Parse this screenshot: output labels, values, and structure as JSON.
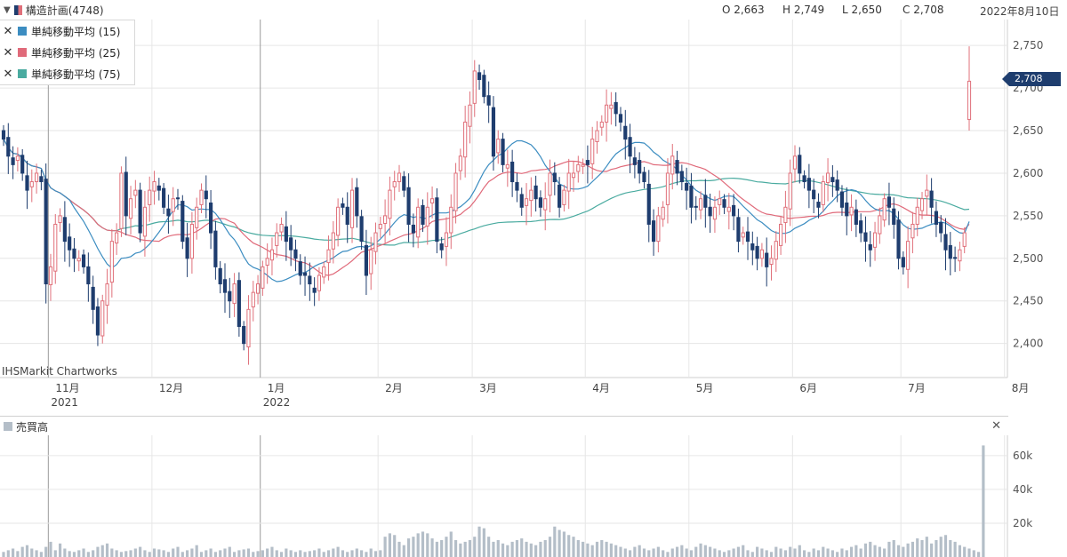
{
  "header": {
    "symbol": "構造計画(4748)",
    "open": "O 2,663",
    "high": "H 2,749",
    "low": "L 2,650",
    "close": "C 2,708",
    "date": "2022年8月10日"
  },
  "legend": [
    {
      "label": "単純移動平均 (15)",
      "color": "#3c8dc1"
    },
    {
      "label": "単純移動平均 (25)",
      "color": "#e06a7a"
    },
    {
      "label": "単純移動平均 (75)",
      "color": "#4aaba0"
    }
  ],
  "watermark": "IHSMarkit Chartworks",
  "last_price": "2,708",
  "volume_panel": {
    "title": "売買高",
    "close_icon": "close-icon"
  },
  "colors": {
    "up": "#e0707a",
    "down": "#1e3d6e",
    "ma15": "#3c8dc1",
    "ma25": "#e06a7a",
    "ma75": "#4aaba0",
    "volume": "#b4bec8",
    "grid": "#e6e6e6"
  },
  "chart_data": [
    {
      "type": "candlestick",
      "title": "構造計画(4748)",
      "y_ticks": [
        "2,400",
        "2,450",
        "2,500",
        "2,550",
        "2,600",
        "2,650",
        "2,700",
        "2,750"
      ],
      "x_labels": [
        "11月",
        "12月",
        "1月",
        "2月",
        "3月",
        "4月",
        "5月",
        "6月",
        "7月",
        "8月"
      ],
      "year_labels": [
        {
          "month": "11月",
          "year": "2021"
        },
        {
          "month": "1月",
          "year": "2022"
        }
      ],
      "ylim": [
        2360,
        2770
      ],
      "month_starts": [
        10,
        32,
        55,
        80,
        100,
        124,
        146,
        168,
        191,
        213
      ],
      "close": [
        2640,
        2620,
        2610,
        2620,
        2600,
        2580,
        2590,
        2600,
        2590,
        2470,
        2490,
        2540,
        2550,
        2520,
        2510,
        2500,
        2500,
        2490,
        2470,
        2440,
        2410,
        2450,
        2470,
        2520,
        2530,
        2600,
        2550,
        2570,
        2580,
        2530,
        2560,
        2580,
        2590,
        2580,
        2560,
        2550,
        2570,
        2570,
        2520,
        2500,
        2540,
        2560,
        2580,
        2570,
        2530,
        2490,
        2470,
        2460,
        2450,
        2470,
        2420,
        2400,
        2440,
        2460,
        2470,
        2490,
        2500,
        2510,
        2530,
        2540,
        2520,
        2510,
        2500,
        2480,
        2480,
        2470,
        2460,
        2480,
        2490,
        2510,
        2530,
        2560,
        2560,
        2540,
        2580,
        2550,
        2520,
        2480,
        2510,
        2530,
        2540,
        2550,
        2580,
        2590,
        2600,
        2580,
        2540,
        2530,
        2560,
        2540,
        2560,
        2570,
        2520,
        2510,
        2530,
        2560,
        2600,
        2620,
        2660,
        2680,
        2720,
        2710,
        2690,
        2680,
        2620,
        2640,
        2610,
        2610,
        2590,
        2580,
        2560,
        2570,
        2580,
        2570,
        2560,
        2570,
        2600,
        2590,
        2560,
        2580,
        2600,
        2600,
        2610,
        2610,
        2610,
        2640,
        2650,
        2660,
        2680,
        2680,
        2670,
        2660,
        2640,
        2620,
        2610,
        2600,
        2590,
        2540,
        2520,
        2550,
        2560,
        2600,
        2620,
        2600,
        2590,
        2580,
        2560,
        2560,
        2570,
        2560,
        2550,
        2560,
        2570,
        2560,
        2560,
        2550,
        2520,
        2530,
        2520,
        2510,
        2500,
        2510,
        2490,
        2500,
        2520,
        2540,
        2560,
        2600,
        2620,
        2600,
        2590,
        2580,
        2570,
        2560,
        2590,
        2600,
        2590,
        2580,
        2560,
        2550,
        2560,
        2540,
        2530,
        2520,
        2510,
        2530,
        2550,
        2570,
        2560,
        2540,
        2500,
        2490,
        2520,
        2540,
        2560,
        2570,
        2580,
        2560,
        2540,
        2530,
        2510,
        2500,
        2500,
        2510,
        2530,
        2708
      ],
      "open_high_low_last": {
        "open": 2663,
        "high": 2749,
        "low": 2650,
        "close": 2708
      },
      "ma15_desc": "15-day simple moving average",
      "ma25_desc": "25-day simple moving average",
      "ma75_desc": "75-day simple moving average"
    },
    {
      "type": "bar",
      "title": "売買高",
      "y_ticks": [
        "20k",
        "40k",
        "60k"
      ],
      "ylim": [
        0,
        72000
      ],
      "values": [
        3000,
        4000,
        5000,
        3500,
        6000,
        7000,
        5000,
        4000,
        3000,
        6000,
        9000,
        4000,
        8000,
        5000,
        3500,
        3000,
        4000,
        5000,
        3000,
        4000,
        6000,
        7000,
        8000,
        5000,
        4000,
        3000,
        3500,
        4000,
        5000,
        6000,
        4000,
        3000,
        5000,
        4500,
        4000,
        3000,
        5000,
        6000,
        3000,
        4000,
        5000,
        7000,
        3000,
        4000,
        5000,
        3000,
        4000,
        5000,
        6000,
        3000,
        4000,
        4500,
        5000,
        3000,
        3500,
        4000,
        5000,
        6000,
        4000,
        3000,
        5000,
        4000,
        3000,
        4000,
        3000,
        3500,
        4000,
        5000,
        3000,
        4000,
        5000,
        6000,
        4000,
        3000,
        4000,
        5000,
        4000,
        3000,
        5000,
        3500,
        4000,
        12000,
        14000,
        13000,
        9000,
        7000,
        11000,
        12000,
        14000,
        15000,
        14000,
        11000,
        9000,
        10000,
        12000,
        15000,
        10000,
        8000,
        9000,
        10000,
        12000,
        18000,
        17000,
        12000,
        9000,
        10000,
        8000,
        7000,
        9000,
        10000,
        11000,
        9000,
        8000,
        7000,
        9000,
        10000,
        12000,
        18000,
        16000,
        15000,
        13000,
        12000,
        10000,
        9000,
        8000,
        7000,
        9000,
        10000,
        9000,
        8000,
        7000,
        6000,
        5000,
        4000,
        6000,
        7000,
        5000,
        4000,
        5000,
        6000,
        4000,
        3000,
        5000,
        6000,
        7000,
        5000,
        4000,
        6000,
        8000,
        7000,
        6000,
        5000,
        4000,
        3000,
        4000,
        5000,
        6000,
        7000,
        4000,
        3000,
        6000,
        5000,
        4000,
        3000,
        6000,
        5000,
        4000,
        6000,
        5000,
        7000,
        4000,
        3000,
        5000,
        4000,
        6000,
        5000,
        4000,
        3000,
        5000,
        4000,
        6000,
        7000,
        5000,
        8000,
        9000,
        7000,
        6000,
        5000,
        9000,
        10000,
        7000,
        6000,
        8000,
        9000,
        11000,
        10000,
        12000,
        8000,
        10000,
        12000,
        13000,
        10000,
        9000,
        7000,
        6000,
        5000,
        4000,
        3000,
        66000
      ]
    }
  ]
}
